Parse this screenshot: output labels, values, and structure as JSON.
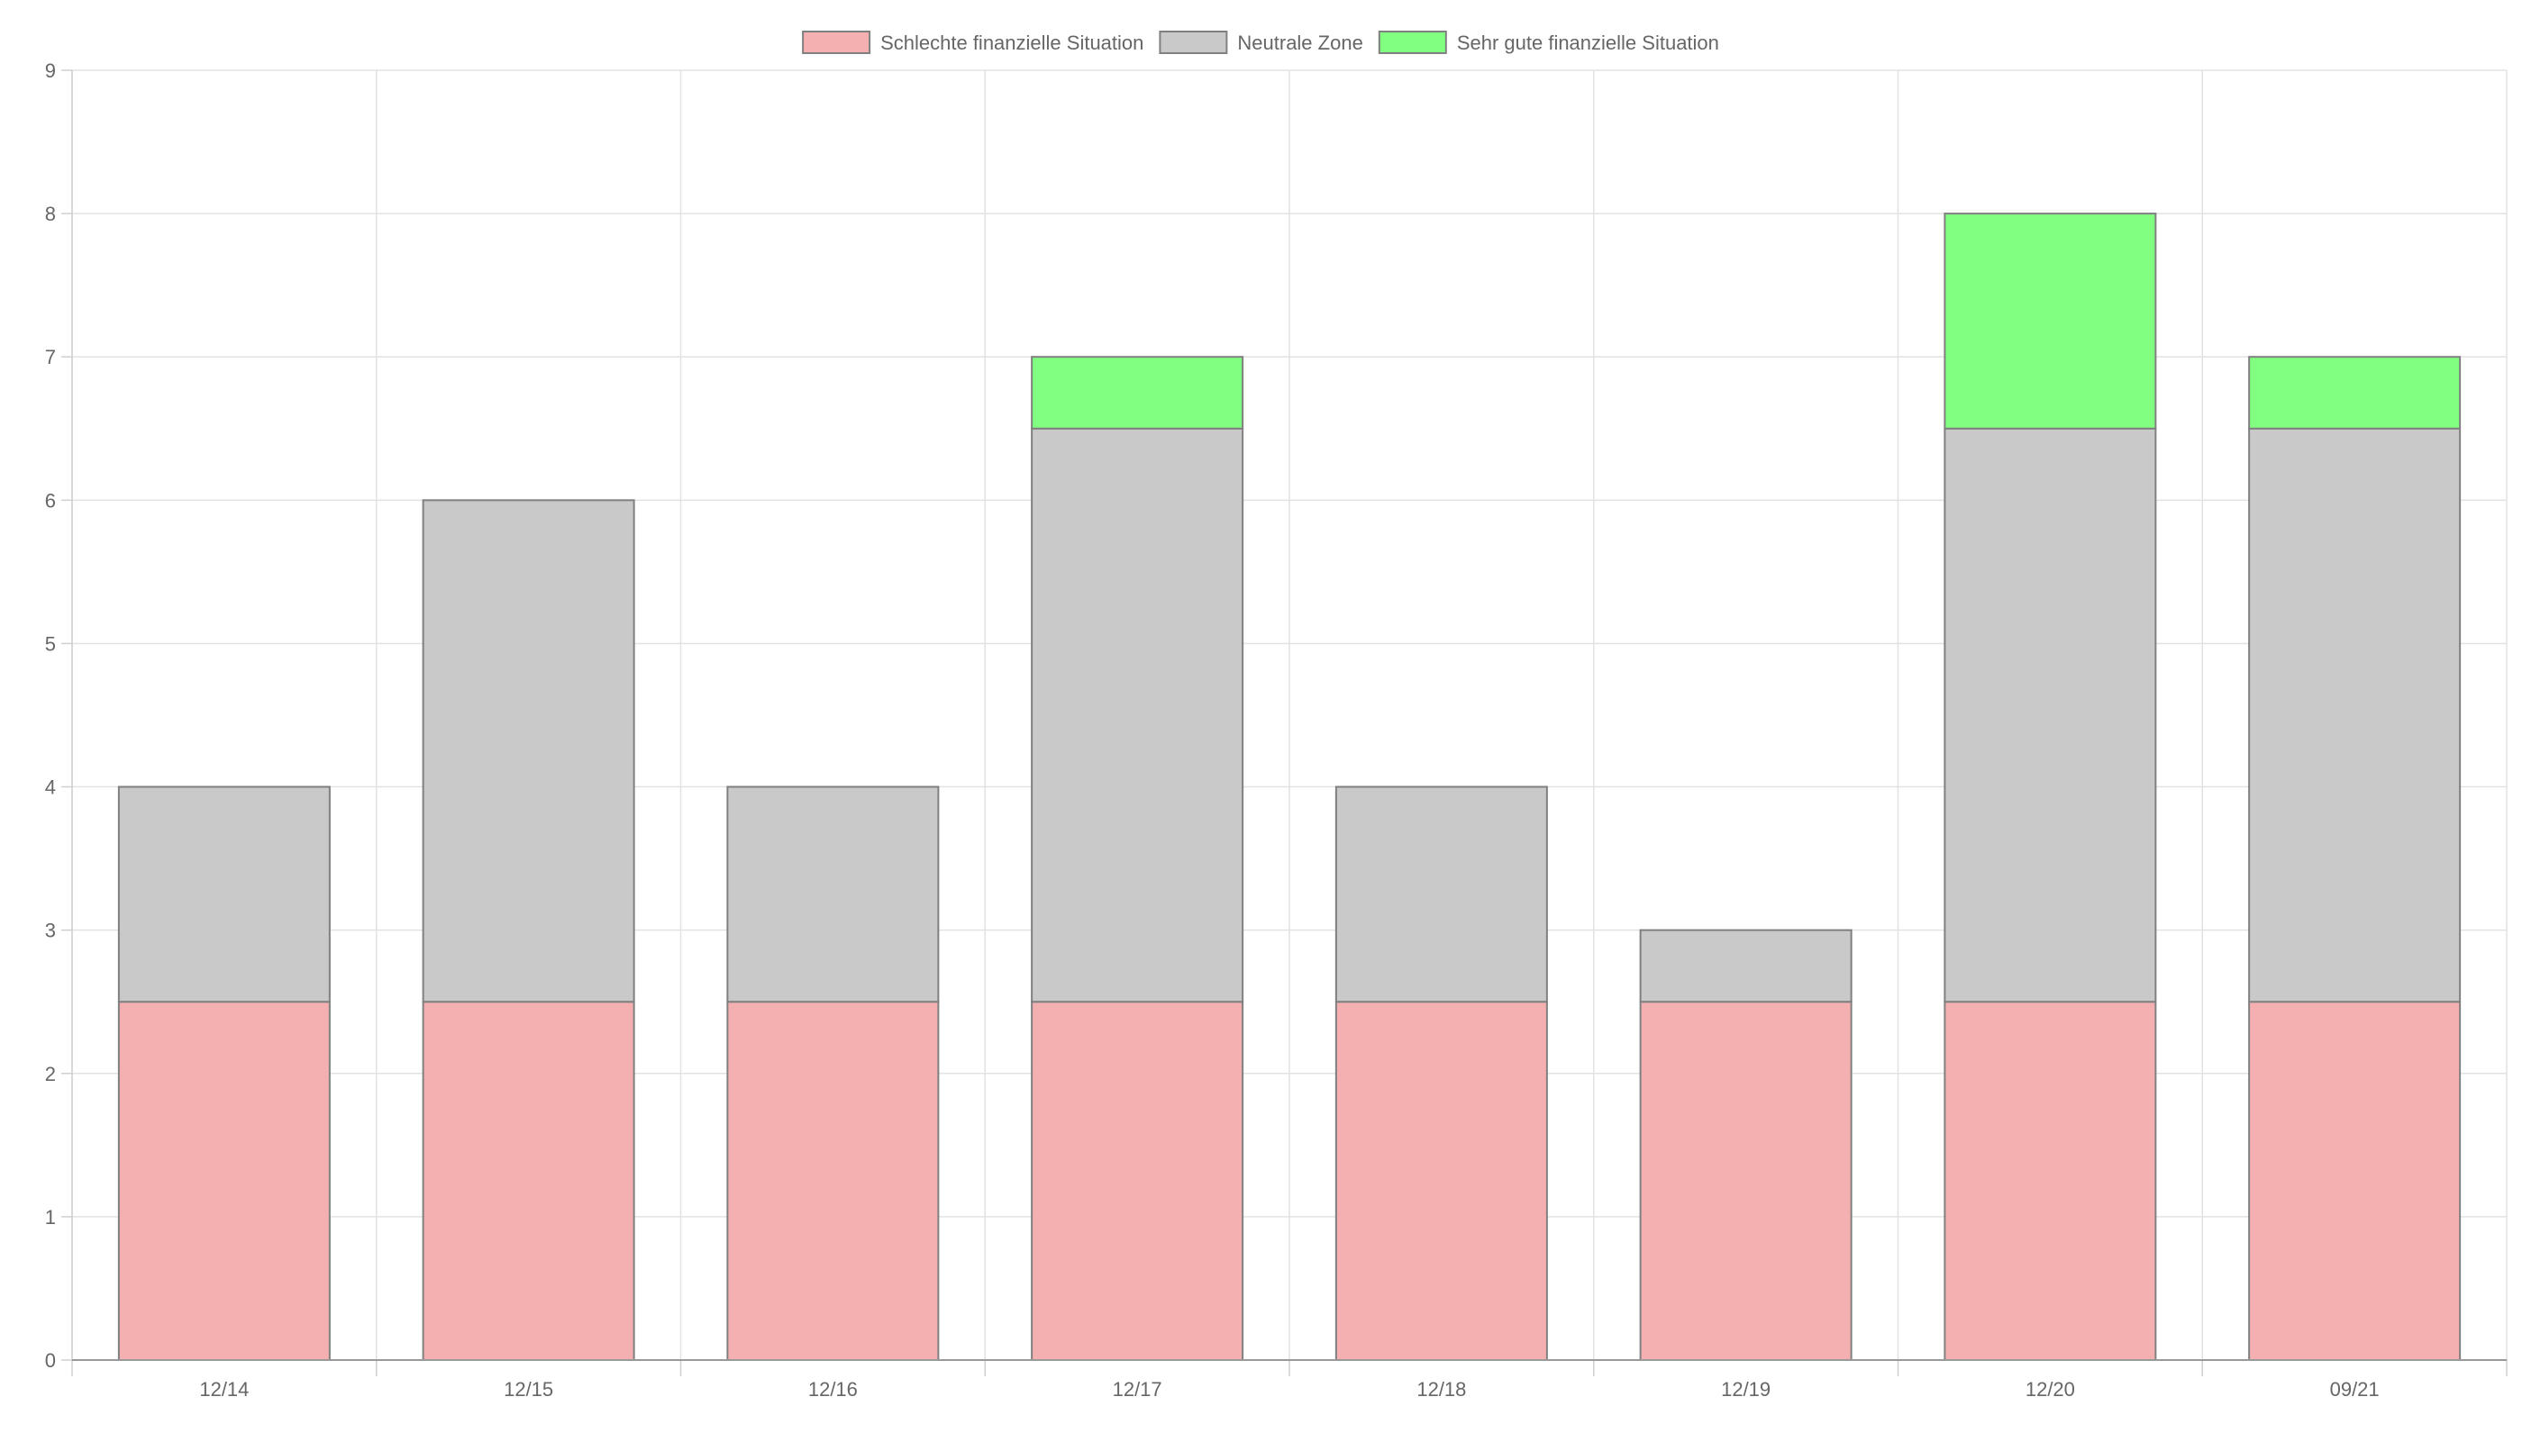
{
  "chart_data": {
    "type": "bar",
    "stacked": true,
    "categories": [
      "12/14",
      "12/15",
      "12/16",
      "12/17",
      "12/18",
      "12/19",
      "12/20",
      "09/21"
    ],
    "series": [
      {
        "name": "Schlechte finanzielle Situation",
        "color": "#f4b0b1",
        "values": [
          2.5,
          2.5,
          2.5,
          2.5,
          2.5,
          2.5,
          2.5,
          2.5
        ]
      },
      {
        "name": "Neutrale Zone",
        "color": "#c9c9c9",
        "values": [
          1.5,
          3.5,
          1.5,
          4,
          1.5,
          0.5,
          4,
          4
        ]
      },
      {
        "name": "Sehr gute finanzielle Situation",
        "color": "#80ff80",
        "values": [
          0,
          0,
          0,
          0.5,
          0,
          0,
          1.5,
          0.5
        ]
      }
    ],
    "ylim": [
      0,
      9
    ],
    "yticks": [
      0,
      1,
      2,
      3,
      4,
      5,
      6,
      7,
      8,
      9
    ],
    "grid": true,
    "legend_position": "top-center",
    "bar_border_color": "#808080",
    "title": "",
    "xlabel": "",
    "ylabel": ""
  }
}
